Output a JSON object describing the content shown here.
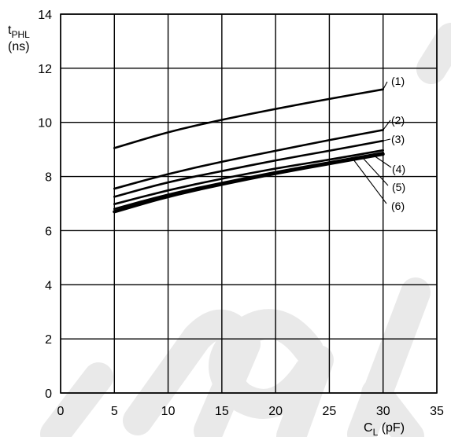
{
  "chart_data": {
    "type": "line",
    "xlabel_main": "C",
    "xlabel_sub": "L",
    "xlabel_unit": " (pF)",
    "ylabel_main": "t",
    "ylabel_sub": "PHL",
    "ylabel_unit": "(ns)",
    "xlim": [
      0,
      35
    ],
    "ylim": [
      0,
      14
    ],
    "xticks": [
      "0",
      "5",
      "10",
      "15",
      "20",
      "25",
      "30",
      "35"
    ],
    "yticks": [
      "0",
      "2",
      "4",
      "6",
      "8",
      "10",
      "12",
      "14"
    ],
    "grid": true,
    "x": [
      5,
      10,
      15,
      20,
      25,
      30
    ],
    "series": [
      {
        "name": "(1)",
        "values": [
          9.05,
          9.65,
          10.1,
          10.5,
          10.87,
          11.22
        ]
      },
      {
        "name": "(2)",
        "values": [
          7.55,
          8.1,
          8.55,
          8.95,
          9.35,
          9.72
        ]
      },
      {
        "name": "(3)",
        "values": [
          7.25,
          7.8,
          8.2,
          8.6,
          8.95,
          9.32
        ]
      },
      {
        "name": "(4)",
        "values": [
          6.98,
          7.5,
          7.92,
          8.3,
          8.62,
          8.97
        ]
      },
      {
        "name": "(5)",
        "values": [
          6.8,
          7.35,
          7.77,
          8.17,
          8.53,
          8.88
        ]
      },
      {
        "name": "(6)",
        "values": [
          6.7,
          7.28,
          7.72,
          8.12,
          8.48,
          8.83
        ]
      }
    ]
  },
  "watermark": {
    "color": "#e9e9e9"
  }
}
